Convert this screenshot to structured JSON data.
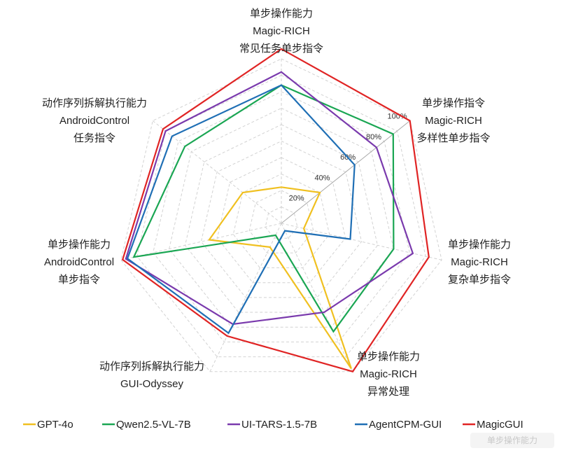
{
  "chart_data": {
    "type": "radar",
    "axes": [
      {
        "lines": [
          "单步操作能力",
          "Magic-RICH",
          "常见任务单步指令"
        ]
      },
      {
        "lines": [
          "单步操作指令",
          "Magic-RICH",
          "多样性单步指令"
        ]
      },
      {
        "lines": [
          "单步操作能力",
          "Magic-RICH",
          "复杂单步指令"
        ]
      },
      {
        "lines": [
          "单步操作能力",
          "Magic-RICH",
          "异常处理"
        ]
      },
      {
        "lines": [
          "动作序列拆解执行能力",
          "GUI-Odyssey"
        ]
      },
      {
        "lines": [
          "单步操作能力",
          "AndroidControl",
          "单步指令"
        ]
      },
      {
        "lines": [
          "动作序列拆解执行能力",
          "AndroidControl",
          "任务指令"
        ]
      }
    ],
    "ticks": [
      "20%",
      "40%",
      "60%",
      "80%",
      "100%"
    ],
    "rmax": 100,
    "grid": true,
    "legend_position": "bottom",
    "series": [
      {
        "name": "GPT-4o",
        "color": "#f0c020",
        "values": [
          22,
          30,
          14,
          98,
          16,
          45,
          30
        ]
      },
      {
        "name": "Qwen2.5-VL-7B",
        "color": "#1aa653",
        "values": [
          84,
          87,
          70,
          73,
          8,
          92,
          75
        ]
      },
      {
        "name": "UI-TARS-1.5-7B",
        "color": "#7a3aad",
        "values": [
          92,
          74,
          82,
          60,
          68,
          97,
          90
        ]
      },
      {
        "name": "AgentCPM-GUI",
        "color": "#1f6fb5",
        "values": [
          84,
          57,
          43,
          5,
          74,
          96,
          85
        ]
      },
      {
        "name": "MagicGUI",
        "color": "#e02424",
        "values": [
          106,
          100,
          92,
          100,
          76,
          99,
          92
        ]
      }
    ]
  },
  "watermark": "单步操作能力"
}
